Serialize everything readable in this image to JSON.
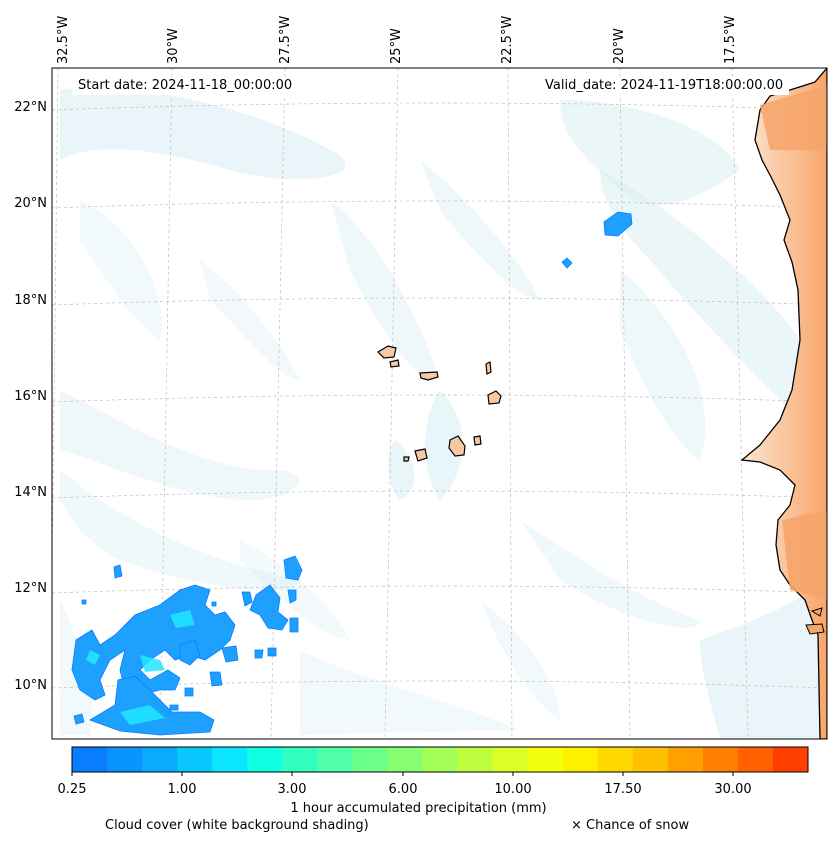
{
  "header": {
    "start_date": "Start date: 2024-11-18_00:00:00",
    "valid_date": "Valid_date: 2024-11-19T18:00:00.00"
  },
  "axes": {
    "lon_labels": [
      "32.5°W",
      "30°W",
      "27.5°W",
      "25°W",
      "22.5°W",
      "20°W",
      "17.5°W"
    ],
    "lat_labels": [
      "22°N",
      "20°N",
      "18°N",
      "16°N",
      "14°N",
      "12°N",
      "10°N"
    ]
  },
  "colorbar": {
    "colors": [
      "#0a7cff",
      "#0a94ff",
      "#0aaaff",
      "#0ac6ff",
      "#0ae6ff",
      "#10ffe0",
      "#30ffc0",
      "#50ffa8",
      "#6cff88",
      "#88ff70",
      "#a4ff58",
      "#c0ff40",
      "#dcff28",
      "#f4ff10",
      "#fff000",
      "#ffd800",
      "#ffc000",
      "#ffa000",
      "#ff8000",
      "#ff6000",
      "#ff4000"
    ],
    "tick_labels": [
      "0.25",
      "1.00",
      "3.00",
      "6.00",
      "10.00",
      "17.50",
      "30.00"
    ],
    "label": "1 hour accumulated precipitation (mm)"
  },
  "legend": {
    "cloud_note": "Cloud cover (white background shading)",
    "snow_note": "× Chance of snow"
  },
  "colors": {
    "land": "#f6a56a",
    "cloud": "#c6e6f0",
    "precip": "#1ea0ff",
    "precip_core": "#22e8ff",
    "coast": "#000000"
  }
}
